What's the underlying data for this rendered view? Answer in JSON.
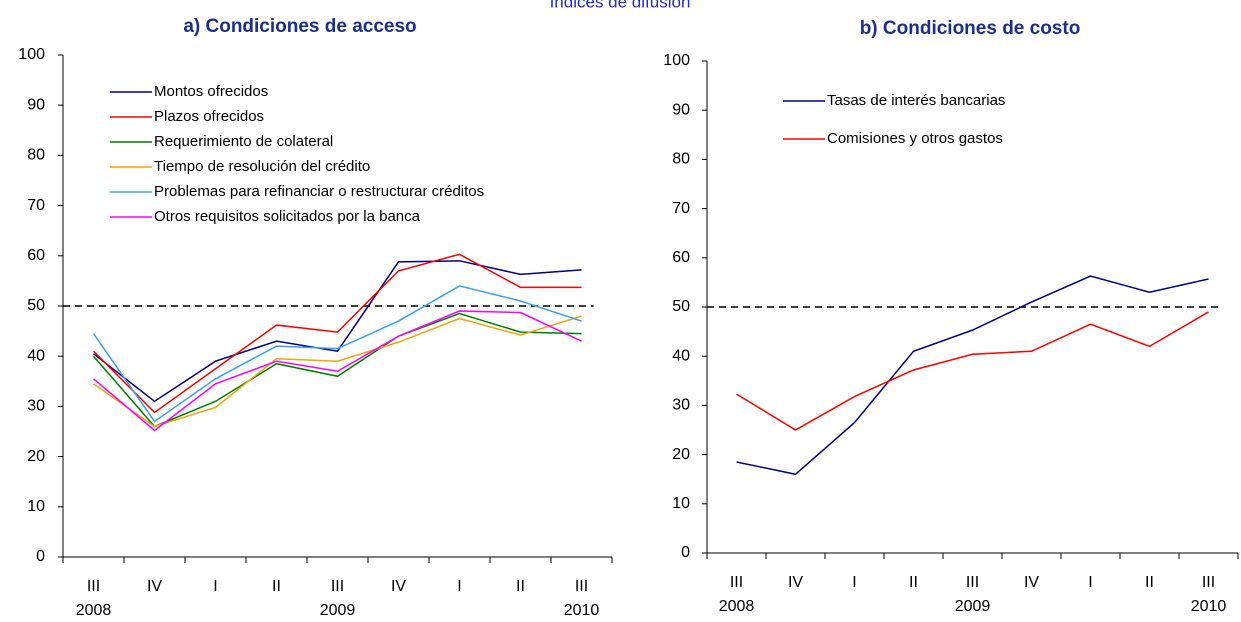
{
  "title": "Índices de difusión",
  "chart_data": [
    {
      "type": "line",
      "title": "a) Condiciones de acceso",
      "categories": [
        "III",
        "IV",
        "I",
        "II",
        "III",
        "IV",
        "I",
        "II",
        "III"
      ],
      "years": [
        "2008",
        null,
        null,
        null,
        "2009",
        null,
        null,
        null,
        "2010"
      ],
      "ylim": [
        0,
        100
      ],
      "yticks": [
        0,
        10,
        20,
        30,
        40,
        50,
        60,
        70,
        80,
        90,
        100
      ],
      "reference_line": 50,
      "series": [
        {
          "name": "Montos ofrecidos",
          "color": "#000080",
          "values": [
            40.5,
            31,
            39,
            43,
            41,
            58.8,
            59,
            56.3,
            57.2
          ]
        },
        {
          "name": "Plazos ofrecidos",
          "color": "#ff0000",
          "values": [
            41,
            28.8,
            37.5,
            46.2,
            44.8,
            57,
            60.3,
            53.7,
            53.7
          ]
        },
        {
          "name": "Requerimiento de colateral",
          "color": "#008000",
          "values": [
            40,
            26,
            31,
            38.5,
            36,
            44,
            48.5,
            44.8,
            44.5
          ]
        },
        {
          "name": "Tiempo de resolución del crédito",
          "color": "#f0a30a",
          "values": [
            34.5,
            26,
            29.8,
            39.5,
            39,
            42.8,
            47.5,
            44.2,
            48
          ]
        },
        {
          "name": "Problemas para refinanciar o restructurar créditos",
          "color": "#3aa0f0",
          "values": [
            44.5,
            27,
            35.5,
            42,
            41.5,
            47,
            54,
            51,
            47
          ]
        },
        {
          "name": "Otros requisitos solicitados por la banca",
          "color": "#ff00ff",
          "values": [
            35.5,
            25.2,
            34.5,
            39,
            37,
            44,
            49,
            48.7,
            43
          ]
        }
      ]
    },
    {
      "type": "line",
      "title": "b) Condiciones de costo",
      "categories": [
        "III",
        "IV",
        "I",
        "II",
        "III",
        "IV",
        "I",
        "II",
        "III"
      ],
      "years": [
        "2008",
        null,
        null,
        null,
        "2009",
        null,
        null,
        null,
        "2010"
      ],
      "ylim": [
        0,
        100
      ],
      "yticks": [
        0,
        10,
        20,
        30,
        40,
        50,
        60,
        70,
        80,
        90,
        100
      ],
      "reference_line": 50,
      "series": [
        {
          "name": "Tasas de interés bancarias",
          "color": "#000080",
          "values": [
            18.5,
            16,
            26.5,
            41,
            45.3,
            51,
            56.3,
            53,
            55.7
          ]
        },
        {
          "name": "Comisiones y otros gastos",
          "color": "#ff0000",
          "values": [
            32.3,
            25,
            31.8,
            37.2,
            40.4,
            41,
            46.5,
            42,
            49
          ]
        }
      ]
    }
  ]
}
